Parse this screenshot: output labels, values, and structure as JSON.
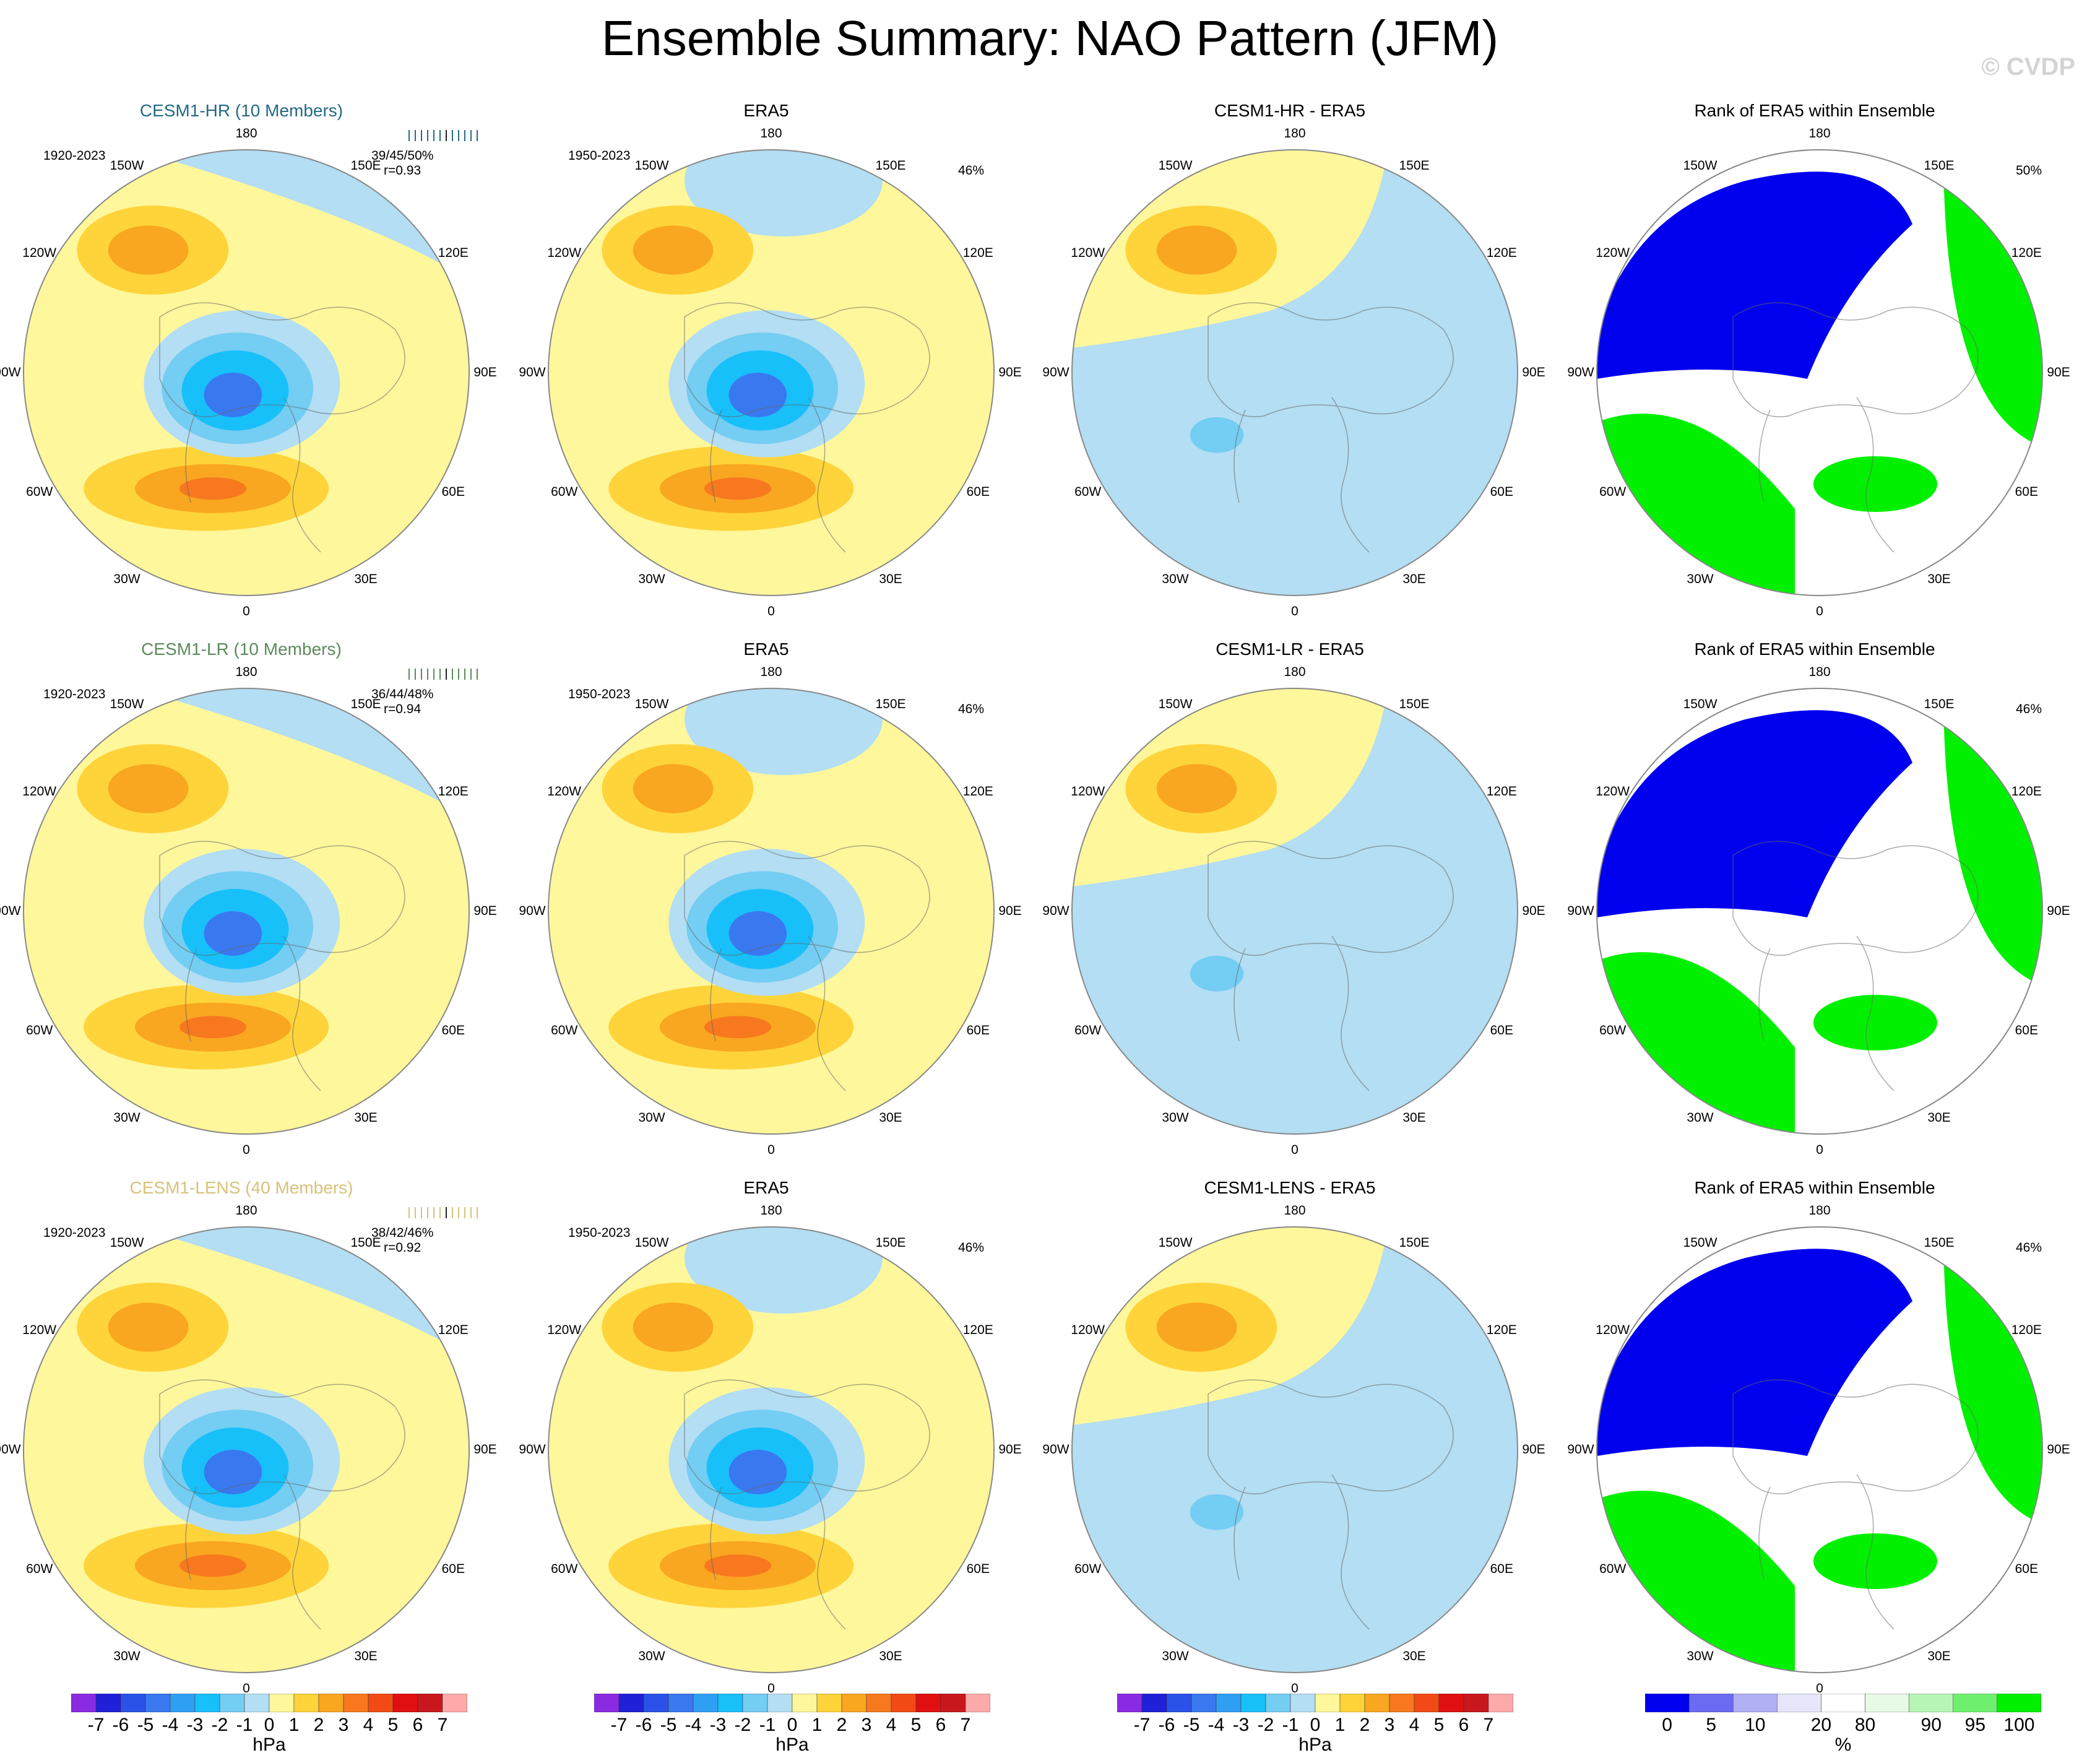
{
  "title": "Ensemble Summary: NAO Pattern (JFM)",
  "watermark": "© CVDP",
  "colors": {
    "ocean_light_blue": "#b3def3",
    "pale_yellow": "#fff79b",
    "gold": "#ffd43a",
    "orange": "#f9a620",
    "rank_low": "#0000ee",
    "rank_high": "#00f000"
  },
  "longitude_labels": [
    "180",
    "150E",
    "120E",
    "90E",
    "60E",
    "30E",
    "0",
    "30W",
    "60W",
    "90W",
    "120W",
    "150W"
  ],
  "rows": [
    {
      "model": "CESM1-HR (10 Members)",
      "model_color": "#236a86",
      "model_period": "1920-2023",
      "obs_period": "1950-2023",
      "stats_pct": "39/45/50%",
      "stats_r": "r=0.93",
      "diff_title": "CESM1-HR - ERA5",
      "obs_title": "ERA5",
      "obs_pct": "46%",
      "rank_title": "Rank of ERA5 within Ensemble",
      "rank_pct": "50%"
    },
    {
      "model": "CESM1-LR (10 Members)",
      "model_color": "#5c8a5c",
      "model_period": "1920-2023",
      "obs_period": "1950-2023",
      "stats_pct": "36/44/48%",
      "stats_r": "r=0.94",
      "diff_title": "CESM1-LR - ERA5",
      "obs_title": "ERA5",
      "obs_pct": "46%",
      "rank_title": "Rank of ERA5 within Ensemble",
      "rank_pct": "46%"
    },
    {
      "model": "CESM1-LENS (40 Members)",
      "model_color": "#d8c27a",
      "model_period": "1920-2023",
      "obs_period": "1950-2023",
      "stats_pct": "38/42/46%",
      "stats_r": "r=0.92",
      "diff_title": "CESM1-LENS - ERA5",
      "obs_title": "ERA5",
      "obs_pct": "46%",
      "rank_title": "Rank of ERA5 within Ensemble",
      "rank_pct": "46%"
    }
  ],
  "colorbar_hpa": {
    "unit": "hPa",
    "labels": [
      "-7",
      "-6",
      "-5",
      "-4",
      "-3",
      "-2",
      "-1",
      "0",
      "1",
      "2",
      "3",
      "4",
      "5",
      "6",
      "7"
    ],
    "colors": [
      "#8a2be2",
      "#2020d8",
      "#2a52e8",
      "#3a78f0",
      "#2f9ff4",
      "#18c0fa",
      "#74cdf2",
      "#b3def3",
      "#fff79b",
      "#ffd43a",
      "#f9a620",
      "#f7781e",
      "#f24a14",
      "#e01010",
      "#c8181e",
      "#ffaaaa"
    ]
  },
  "colorbar_rank": {
    "unit": "%",
    "labels": [
      "0",
      "5",
      "10",
      "20",
      "80",
      "90",
      "95",
      "100"
    ],
    "colors": [
      "#0000ee",
      "#6a6af2",
      "#b0b0f4",
      "#e6e6fa",
      "#ffffff",
      "#e6fae6",
      "#b6f5b6",
      "#6ef06e",
      "#00f000"
    ]
  }
}
